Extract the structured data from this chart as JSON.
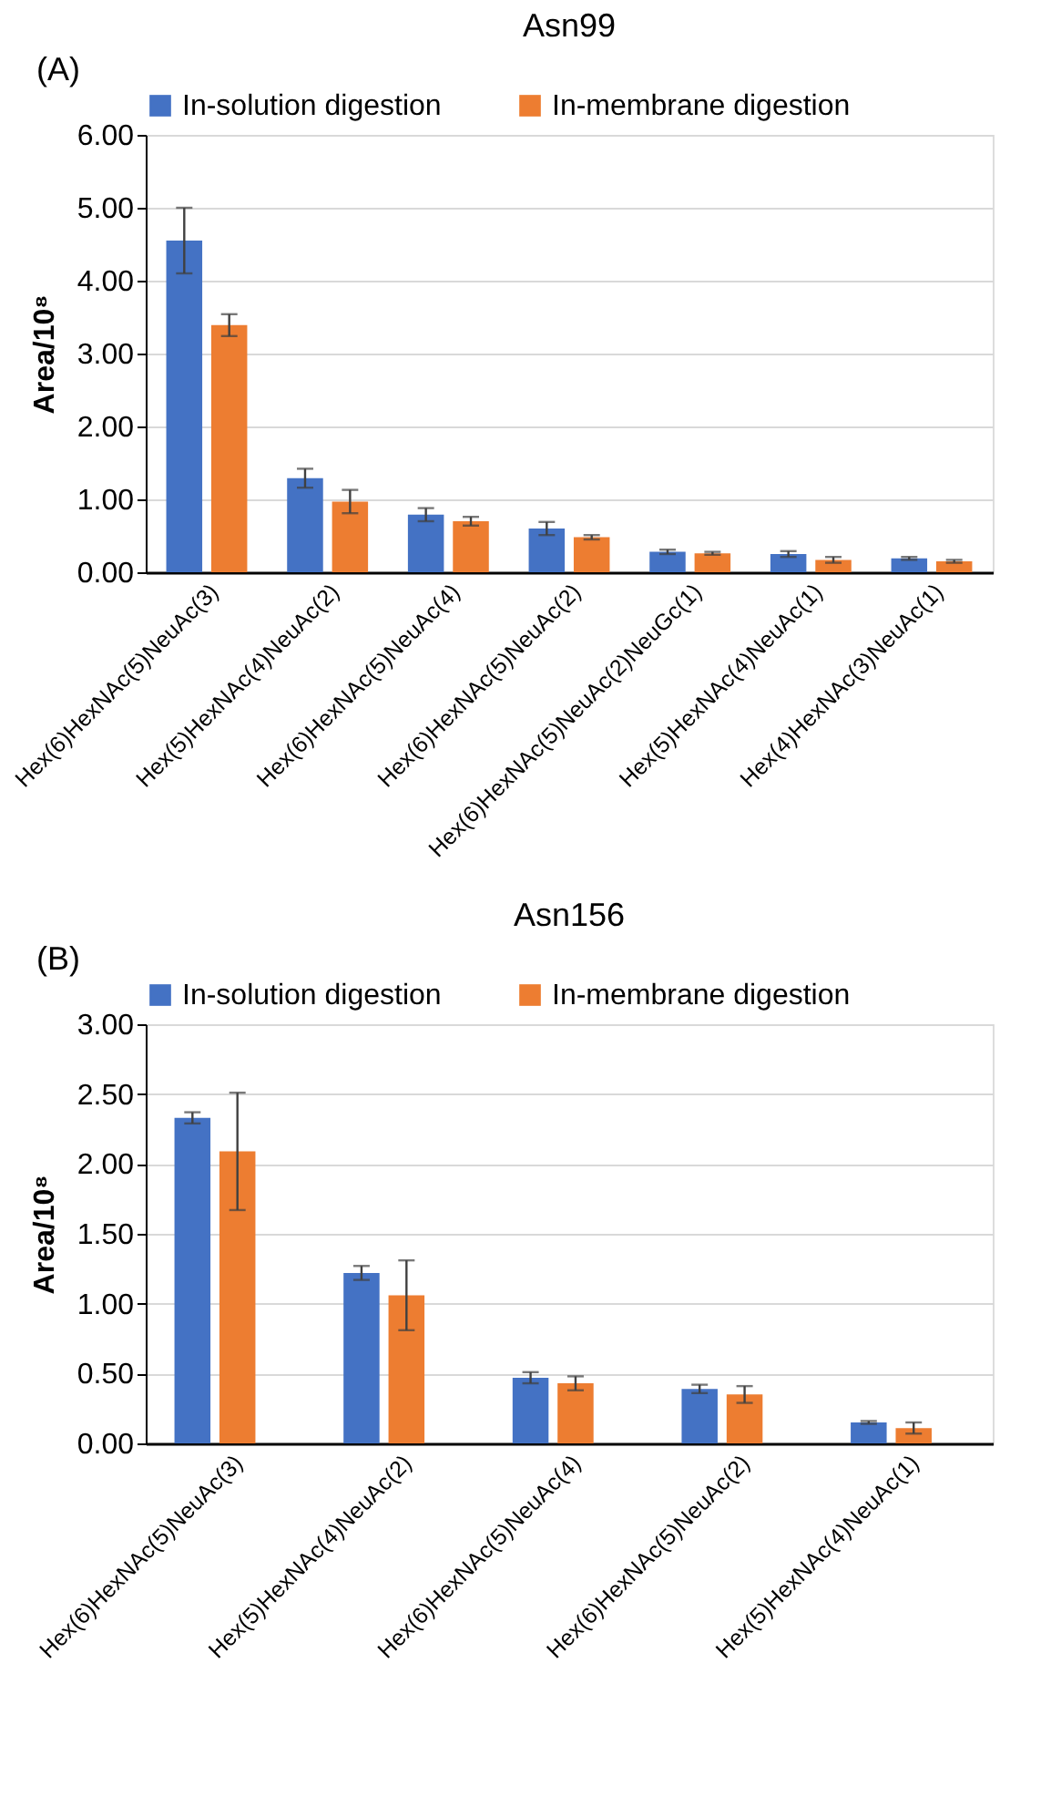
{
  "chart_data": [
    {
      "type": "bar",
      "title": "Asn99",
      "annotations": [
        "(A)"
      ],
      "ylabel": "Area/10⁸",
      "categories": [
        "Hex(6)HexNAc(5)NeuAc(3)",
        "Hex(5)HexNAc(4)NeuAc(2)",
        "Hex(6)HexNAc(5)NeuAc(4)",
        "Hex(6)HexNAc(5)NeuAc(2)",
        "Hex(6)HexNAc(5)NeuAc(2)NeuGc(1)",
        "Hex(5)HexNAc(4)NeuAc(1)",
        "Hex(4)HexNAc(3)NeuAc(1)"
      ],
      "series": [
        {
          "name": "In-solution digestion",
          "color": "#4472c4",
          "values": [
            4.55,
            1.29,
            0.79,
            0.6,
            0.28,
            0.25,
            0.19
          ],
          "errors": [
            0.45,
            0.13,
            0.09,
            0.09,
            0.03,
            0.04,
            0.02
          ]
        },
        {
          "name": "In-membrane digestion",
          "color": "#ed7d31",
          "values": [
            3.39,
            0.97,
            0.7,
            0.48,
            0.26,
            0.17,
            0.15
          ],
          "errors": [
            0.15,
            0.16,
            0.06,
            0.03,
            0.02,
            0.04,
            0.02
          ]
        }
      ],
      "ylim": [
        0,
        6
      ],
      "yticks": [
        {
          "value": 0,
          "label": "0.00"
        },
        {
          "value": 1,
          "label": "1.00"
        },
        {
          "value": 2,
          "label": "2.00"
        },
        {
          "value": 3,
          "label": "3.00"
        },
        {
          "value": 4,
          "label": "4.00"
        },
        {
          "value": 5,
          "label": "5.00"
        },
        {
          "value": 6,
          "label": "6.00"
        }
      ],
      "grid": "y",
      "legend": "top"
    },
    {
      "type": "bar",
      "title": "Asn156",
      "annotations": [
        "(B)"
      ],
      "ylabel": "Area/10⁸",
      "categories": [
        "Hex(6)HexNAc(5)NeuAc(3)",
        "Hex(5)HexNAc(4)NeuAc(2)",
        "Hex(6)HexNAc(5)NeuAc(4)",
        "Hex(6)HexNAc(5)NeuAc(2)",
        "Hex(5)HexNAc(4)NeuAc(1)"
      ],
      "series": [
        {
          "name": "In-solution digestion",
          "color": "#4472c4",
          "values": [
            2.33,
            1.22,
            0.47,
            0.39,
            0.15
          ],
          "errors": [
            0.04,
            0.05,
            0.04,
            0.03,
            0.01
          ]
        },
        {
          "name": "In-membrane digestion",
          "color": "#ed7d31",
          "values": [
            2.09,
            1.06,
            0.43,
            0.35,
            0.11
          ],
          "errors": [
            0.42,
            0.25,
            0.05,
            0.06,
            0.04
          ]
        }
      ],
      "ylim": [
        0,
        3
      ],
      "yticks": [
        {
          "value": 0,
          "label": "0.00"
        },
        {
          "value": 0.5,
          "label": "0.50"
        },
        {
          "value": 1,
          "label": "1.00"
        },
        {
          "value": 1.5,
          "label": "1.50"
        },
        {
          "value": 2,
          "label": "2.00"
        },
        {
          "value": 2.5,
          "label": "2.50"
        },
        {
          "value": 3,
          "label": "3.00"
        }
      ],
      "grid": "y",
      "legend": "top"
    }
  ]
}
